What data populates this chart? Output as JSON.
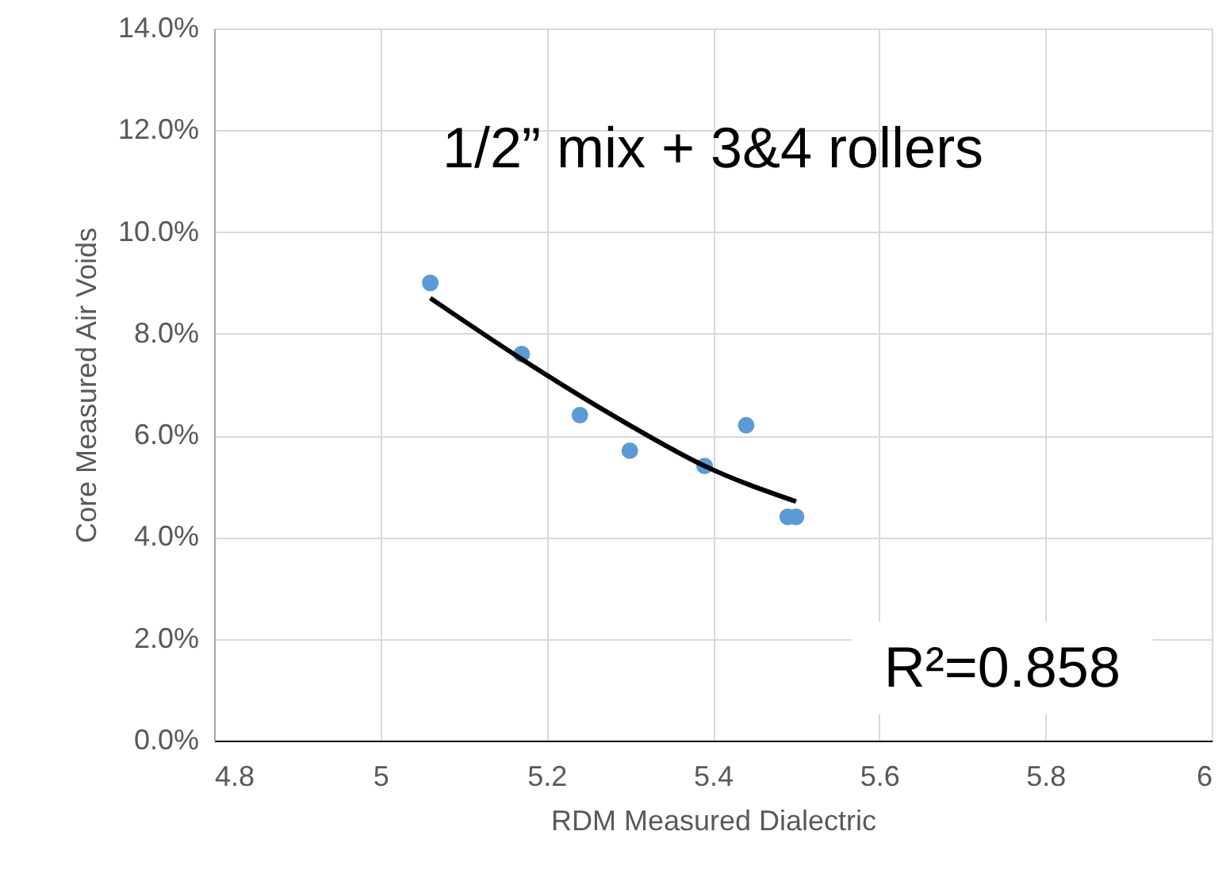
{
  "chart_data": {
    "type": "scatter",
    "xlabel": "RDM Measured Dialectric",
    "ylabel": "Core Measured Air Voids",
    "annotations": [
      "1/2” mix + 3&4 rollers",
      "R²=0.858"
    ],
    "series": [
      {
        "color": "#5b9bd5",
        "x": [
          5.06,
          5.17,
          5.24,
          5.3,
          5.39,
          5.44,
          5.49,
          5.5
        ],
        "values": [
          9.0,
          7.6,
          6.4,
          5.7,
          5.4,
          6.2,
          4.4,
          4.4
        ],
        "marker": "circle"
      },
      {
        "type": "line",
        "color": "#000000",
        "x": [
          5.06,
          5.17,
          5.3,
          5.39,
          5.5
        ],
        "values": [
          8.7,
          7.5,
          6.2,
          5.4,
          4.7
        ],
        "marker": "none"
      }
    ],
    "xlim": [
      4.8,
      6
    ],
    "xticks": [
      4.8,
      5,
      5.2,
      5.4,
      5.6,
      5.8,
      6
    ],
    "ylim": [
      0,
      14
    ],
    "yticks": [
      {
        "value": 0,
        "label": "0.0%"
      },
      {
        "value": 2,
        "label": "2.0%"
      },
      {
        "value": 4,
        "label": "4.0%"
      },
      {
        "value": 6,
        "label": "6.0%"
      },
      {
        "value": 8,
        "label": "8.0%"
      },
      {
        "value": 10,
        "label": "10.0%"
      },
      {
        "value": 12,
        "label": "12.0%"
      },
      {
        "value": 14,
        "label": "14.0%"
      }
    ],
    "grid": true
  }
}
